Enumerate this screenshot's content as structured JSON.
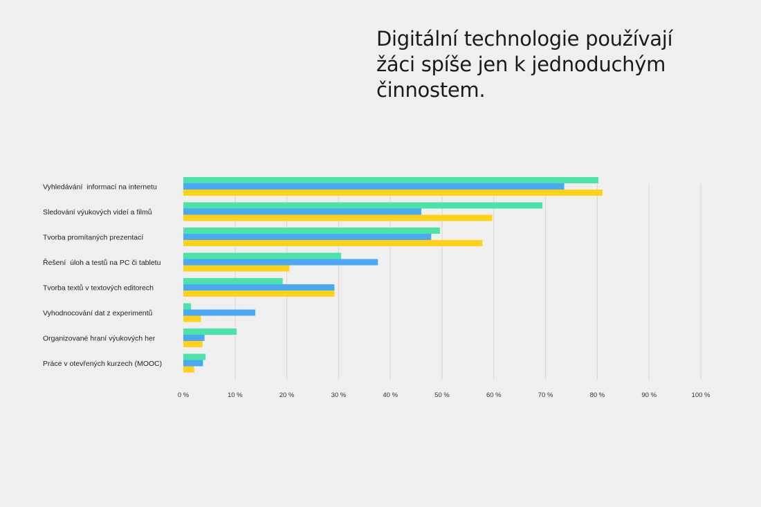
{
  "title": "Digitální technologie používají\nžáci spíše jen k jednoduchým\nčinnostem.",
  "chart_data": {
    "type": "bar",
    "orientation": "horizontal",
    "categories": [
      "Vyhledávání  informací na internetu",
      "Sledování výukových videí a filmů",
      "Tvorba promítaných prezentací",
      "Řešení  úloh a testů na PC či tabletu",
      "Tvorba textů v textových editorech",
      "Vyhodnocování dat z experimentů",
      "Organizované hraní výukových her",
      "Práce v otevřených kurzech (MOOC)"
    ],
    "series": [
      {
        "color": "#4de3a8",
        "values": [
          80.2,
          69.4,
          49.6,
          30.5,
          19.2,
          1.5,
          10.3,
          4.3
        ]
      },
      {
        "color": "#4aa8f5",
        "values": [
          73.6,
          46.0,
          47.9,
          37.6,
          29.2,
          13.9,
          4.1,
          3.8
        ]
      },
      {
        "color": "#ffd21a",
        "values": [
          81.0,
          59.7,
          57.8,
          20.5,
          29.2,
          3.4,
          3.7,
          2.1
        ]
      }
    ],
    "xlim": [
      0,
      100
    ],
    "ticks": [
      0,
      10,
      20,
      30,
      40,
      50,
      60,
      70,
      80,
      90,
      100
    ],
    "tick_labels": [
      "0 %",
      "10 %",
      "20 %",
      "30 %",
      "40 %",
      "50 %",
      "60 %",
      "70 %",
      "80 %",
      "90 %",
      "100 %"
    ],
    "grid": true,
    "legend": "none"
  }
}
